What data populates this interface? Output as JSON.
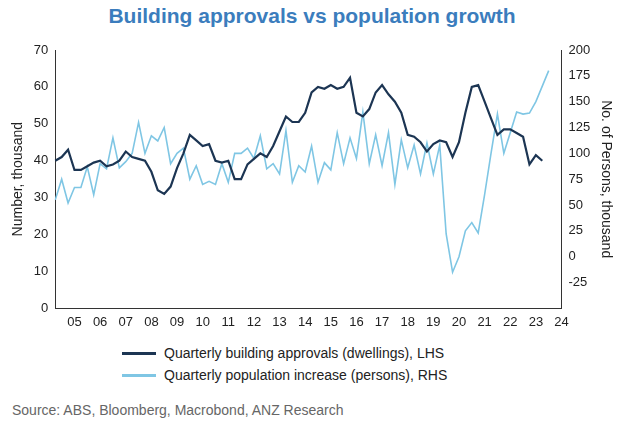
{
  "chart_data": {
    "type": "line",
    "title": "Building approvals vs population growth",
    "ylabel": "Number, thousand",
    "y2label": "No. of Persons, thousand",
    "source": "Source: ABS, Bloomberg, Macrobond, ANZ Research",
    "categories": [
      null,
      null,
      null,
      "05",
      null,
      null,
      null,
      "06",
      null,
      null,
      null,
      "07",
      null,
      null,
      null,
      "08",
      null,
      null,
      null,
      "09",
      null,
      null,
      null,
      "10",
      null,
      null,
      null,
      "11",
      null,
      null,
      null,
      "12",
      null,
      null,
      null,
      "13",
      null,
      null,
      null,
      "14",
      null,
      null,
      null,
      "15",
      null,
      null,
      null,
      "16",
      null,
      null,
      null,
      "17",
      null,
      null,
      null,
      "18",
      null,
      null,
      null,
      "19",
      null,
      null,
      null,
      "20",
      null,
      null,
      null,
      "21",
      null,
      null,
      null,
      "22",
      null,
      null,
      null,
      "23",
      null,
      null,
      null,
      "24"
    ],
    "series": [
      {
        "name": "Quarterly building approvals (dwellings), LHS",
        "color": "#1c3553",
        "axis": "y",
        "values": [
          40,
          41,
          43,
          37.5,
          37.5,
          38.5,
          39.5,
          40,
          38.5,
          39,
          40,
          42.5,
          41,
          40.5,
          40,
          37,
          32,
          31,
          33,
          38,
          42,
          47,
          45.5,
          44,
          44.5,
          40,
          39.5,
          40,
          35,
          35,
          39,
          40.5,
          42,
          41,
          44,
          48,
          52,
          50.5,
          50.5,
          53,
          58.5,
          60,
          59.5,
          60.5,
          59.5,
          60,
          62.5,
          53,
          52,
          54,
          58.5,
          60.5,
          58,
          56,
          53,
          47,
          46.5,
          45,
          42.5,
          44.5,
          45.5,
          45,
          41,
          45,
          53,
          60,
          60.5,
          56,
          51.5,
          47,
          48.5,
          48.5,
          47.5,
          46.5,
          39,
          41.5,
          40,
          null,
          null,
          null
        ]
      },
      {
        "name": "Quarterly population increase (persons), RHS",
        "color": "#7fc6e4",
        "axis": "y2",
        "values": [
          55,
          75,
          52,
          67,
          67,
          87,
          60,
          90,
          85,
          115,
          86,
          92,
          100,
          130,
          100,
          117,
          112,
          125,
          90,
          100,
          105,
          75,
          88,
          70,
          73,
          70,
          90,
          72,
          100,
          100,
          105,
          95,
          117,
          85,
          90,
          80,
          122,
          72,
          88,
          82,
          107,
          72,
          91,
          84,
          120,
          90,
          115,
          95,
          140,
          90,
          118,
          88,
          120,
          70,
          113,
          86,
          108,
          80,
          110,
          80,
          108,
          22,
          -15,
          0,
          25,
          33,
          23,
          60,
          100,
          138,
          100,
          120,
          140,
          138,
          139,
          150,
          165,
          180,
          null,
          null
        ]
      }
    ],
    "ylim": [
      0,
      70
    ],
    "yticks": [
      0,
      10,
      20,
      30,
      40,
      50,
      60,
      70
    ],
    "y2lim": [
      -50,
      200
    ],
    "y2ticks": [
      -25,
      0,
      25,
      50,
      75,
      100,
      125,
      150,
      175,
      200
    ],
    "grid": false,
    "legend": "bottom"
  }
}
